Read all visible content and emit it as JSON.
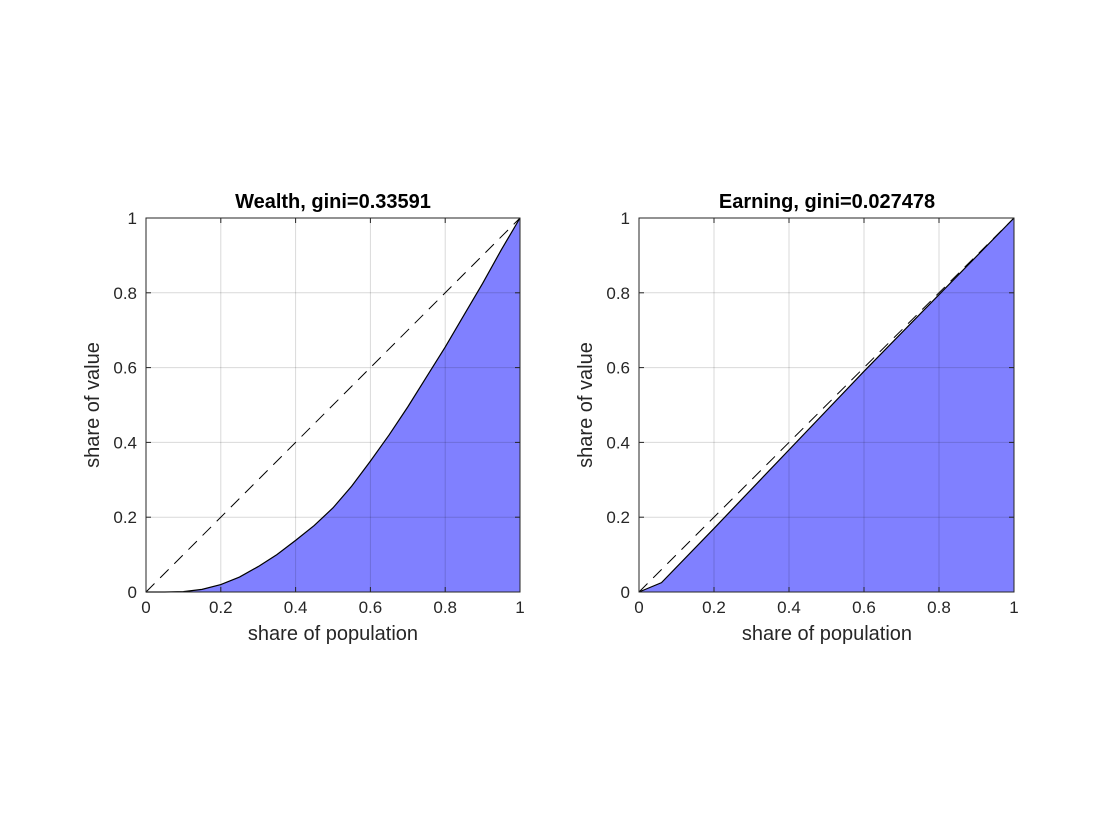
{
  "chart_data": [
    {
      "type": "area",
      "title": "Wealth, gini=0.33591",
      "xlabel": "share of population",
      "ylabel": "share of value",
      "xlim": [
        0,
        1
      ],
      "ylim": [
        0,
        1
      ],
      "xticks": [
        "0",
        "0.2",
        "0.4",
        "0.6",
        "0.8",
        "1"
      ],
      "yticks": [
        "0",
        "0.2",
        "0.4",
        "0.6",
        "0.8",
        "1"
      ],
      "grid": true,
      "fill_color": "#8080ff",
      "lorenz_curve": {
        "x": [
          0,
          0.05,
          0.1,
          0.15,
          0.2,
          0.25,
          0.3,
          0.35,
          0.4,
          0.45,
          0.5,
          0.55,
          0.6,
          0.65,
          0.7,
          0.75,
          0.8,
          0.85,
          0.9,
          0.95,
          1.0
        ],
        "y": [
          0,
          0,
          0.001,
          0.007,
          0.02,
          0.04,
          0.068,
          0.1,
          0.138,
          0.178,
          0.225,
          0.283,
          0.35,
          0.42,
          0.495,
          0.575,
          0.655,
          0.74,
          0.825,
          0.915,
          1.0
        ]
      },
      "equality_line": {
        "x": [
          0,
          1
        ],
        "y": [
          0,
          1
        ],
        "style": "dashed"
      }
    },
    {
      "type": "area",
      "title": "Earning, gini=0.027478",
      "xlabel": "share of population",
      "ylabel": "share of value",
      "xlim": [
        0,
        1
      ],
      "ylim": [
        0,
        1
      ],
      "xticks": [
        "0",
        "0.2",
        "0.4",
        "0.6",
        "0.8",
        "1"
      ],
      "yticks": [
        "0",
        "0.2",
        "0.4",
        "0.6",
        "0.8",
        "1"
      ],
      "grid": true,
      "fill_color": "#8080ff",
      "lorenz_curve": {
        "x": [
          0,
          0.06,
          0.2,
          0.4,
          0.6,
          0.8,
          1.0
        ],
        "y": [
          0,
          0.025,
          0.17,
          0.38,
          0.59,
          0.795,
          1.0
        ]
      },
      "equality_line": {
        "x": [
          0,
          1
        ],
        "y": [
          0,
          1
        ],
        "style": "dashed"
      }
    }
  ]
}
